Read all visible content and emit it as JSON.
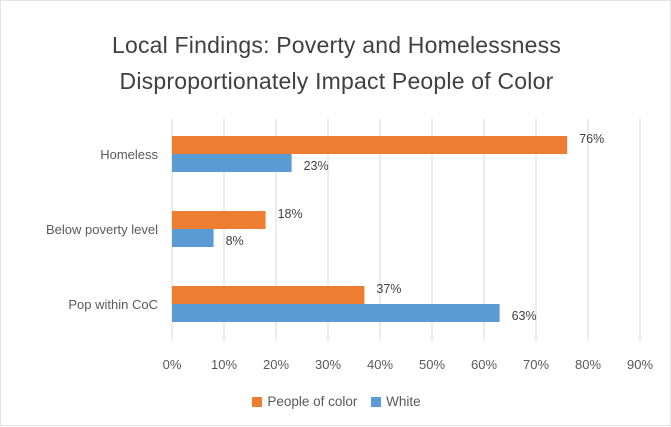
{
  "chart_data": {
    "type": "bar",
    "orientation": "horizontal",
    "title": "Local Findings: Poverty and Homelessness Disproportionately Impact People of Color",
    "title_lines": [
      "Local Findings: Poverty and Homelessness",
      "Disproportionately Impact People of Color"
    ],
    "categories": [
      "Homeless",
      "Below poverty level",
      "Pop within CoC"
    ],
    "series": [
      {
        "name": "People of color",
        "color": "#ED7D31",
        "values": [
          76,
          18,
          37
        ],
        "labels": [
          "76%",
          "18%",
          "37%"
        ]
      },
      {
        "name": "White",
        "color": "#5B9BD5",
        "values": [
          23,
          8,
          63
        ],
        "labels": [
          "23%",
          "8%",
          "63%"
        ]
      }
    ],
    "xlim": [
      0,
      90
    ],
    "x_ticks": [
      "0%",
      "10%",
      "20%",
      "30%",
      "40%",
      "50%",
      "60%",
      "70%",
      "80%",
      "90%"
    ],
    "grid": "vertical",
    "legend_position": "bottom"
  }
}
